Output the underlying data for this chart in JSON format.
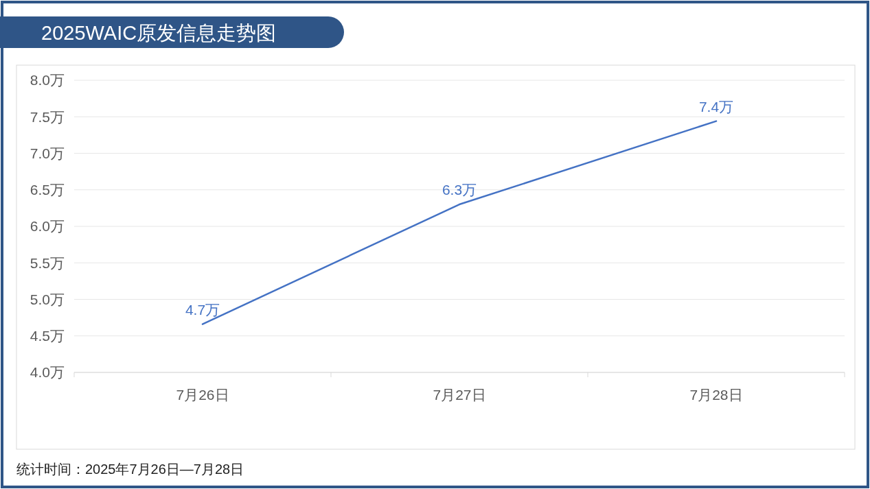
{
  "chart_data": {
    "type": "line",
    "title": "2025WAIC原发信息走势图",
    "categories": [
      "7月26日",
      "7月27日",
      "7月28日"
    ],
    "series": [
      {
        "color": "#4472c4",
        "values": [
          4.66,
          6.3,
          7.44
        ],
        "value_labels": [
          "4.7万",
          "6.3万",
          "7.4万"
        ]
      }
    ],
    "ylim": [
      4,
      8
    ],
    "yticks": [
      {
        "value": 4,
        "label": "4.0万"
      },
      {
        "value": 4.5,
        "label": "4.5万"
      },
      {
        "value": 5,
        "label": "5.0万"
      },
      {
        "value": 5.5,
        "label": "5.5万"
      },
      {
        "value": 6,
        "label": "6.0万"
      },
      {
        "value": 6.5,
        "label": "6.5万"
      },
      {
        "value": 7,
        "label": "7.0万"
      },
      {
        "value": 7.5,
        "label": "7.5万"
      },
      {
        "value": 8,
        "label": "8.0万"
      }
    ],
    "grid": "y",
    "marker": "none",
    "line_style": "solid",
    "annotations": [
      "统计时间：2025年7月26日—7月28日"
    ]
  }
}
